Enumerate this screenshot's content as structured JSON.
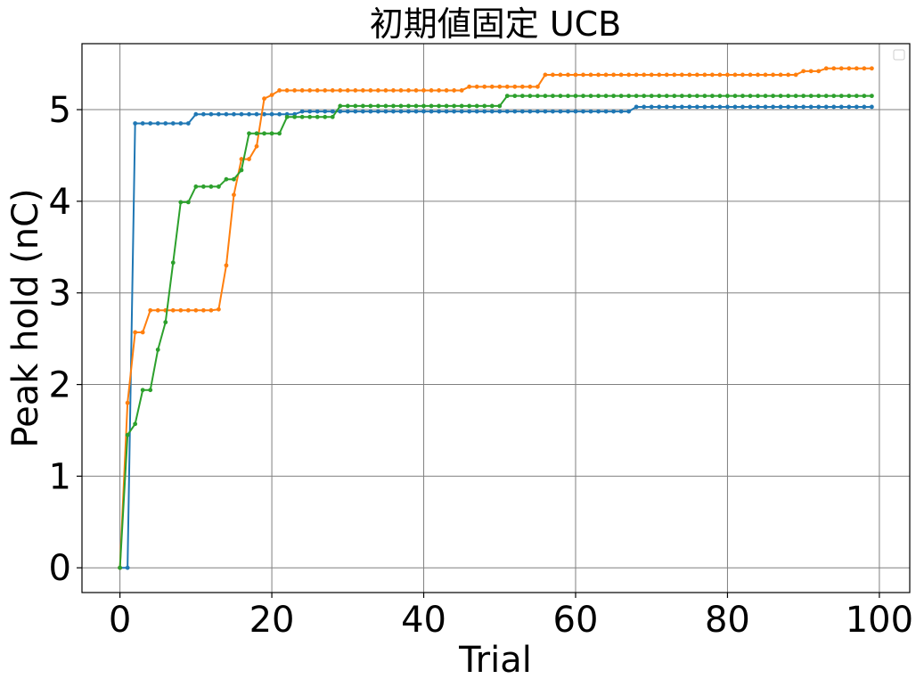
{
  "chart_data": {
    "type": "line",
    "title": "初期値固定 UCB",
    "xlabel": "Trial",
    "ylabel": "Peak hold (nC)",
    "xlim": [
      -5,
      104
    ],
    "ylim": [
      -0.27,
      5.72
    ],
    "xticks": [
      0,
      20,
      40,
      60,
      80,
      100
    ],
    "yticks": [
      0,
      1,
      2,
      3,
      4,
      5
    ],
    "grid": true,
    "legend": "top-right, empty",
    "markers": true,
    "series": [
      {
        "color": "#1f77b4",
        "points": [
          [
            0,
            0
          ],
          [
            1,
            0
          ],
          [
            2,
            4.85
          ],
          [
            9,
            4.85
          ],
          [
            10,
            4.95
          ],
          [
            23,
            4.95
          ],
          [
            24,
            4.98
          ],
          [
            67,
            4.98
          ],
          [
            68,
            5.03
          ],
          [
            99,
            5.03
          ]
        ]
      },
      {
        "color": "#ff7f0e",
        "points": [
          [
            0,
            0
          ],
          [
            1,
            1.8
          ],
          [
            2,
            2.57
          ],
          [
            3,
            2.57
          ],
          [
            4,
            2.81
          ],
          [
            12,
            2.81
          ],
          [
            13,
            2.82
          ],
          [
            14,
            3.3
          ],
          [
            15,
            4.07
          ],
          [
            16,
            4.46
          ],
          [
            17,
            4.46
          ],
          [
            18,
            4.6
          ],
          [
            19,
            5.12
          ],
          [
            20,
            5.16
          ],
          [
            21,
            5.21
          ],
          [
            45,
            5.21
          ],
          [
            46,
            5.25
          ],
          [
            55,
            5.25
          ],
          [
            56,
            5.38
          ],
          [
            89,
            5.38
          ],
          [
            90,
            5.42
          ],
          [
            92,
            5.42
          ],
          [
            93,
            5.45
          ],
          [
            99,
            5.45
          ]
        ]
      },
      {
        "color": "#2ca02c",
        "points": [
          [
            0,
            0
          ],
          [
            1,
            1.45
          ],
          [
            2,
            1.57
          ],
          [
            3,
            1.94
          ],
          [
            4,
            1.94
          ],
          [
            5,
            2.38
          ],
          [
            6,
            2.68
          ],
          [
            7,
            3.33
          ],
          [
            8,
            3.99
          ],
          [
            9,
            3.99
          ],
          [
            10,
            4.16
          ],
          [
            13,
            4.16
          ],
          [
            14,
            4.24
          ],
          [
            15,
            4.24
          ],
          [
            16,
            4.34
          ],
          [
            17,
            4.74
          ],
          [
            21,
            4.74
          ],
          [
            22,
            4.92
          ],
          [
            28,
            4.92
          ],
          [
            29,
            5.04
          ],
          [
            50,
            5.04
          ],
          [
            51,
            5.15
          ],
          [
            99,
            5.15
          ]
        ]
      }
    ]
  }
}
